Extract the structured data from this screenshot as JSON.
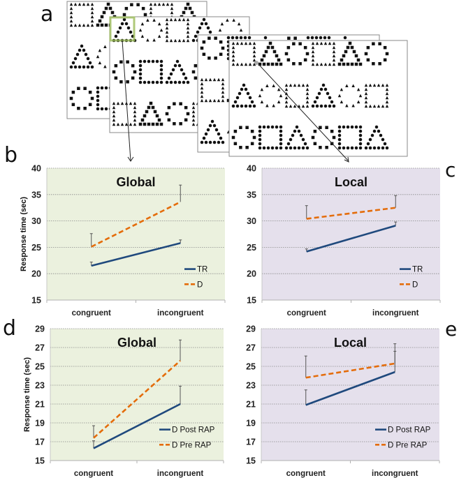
{
  "panel_labels": {
    "a": "a",
    "b": "b",
    "c": "c",
    "d": "d",
    "e": "e"
  },
  "stimuli": {
    "description": "Navon hierarchical figures: large shapes (square, triangle, circle) composed of small shapes; four overlapping stimulus frames",
    "shapes": [
      "square",
      "triangle",
      "circle"
    ],
    "highlight_color": "#9bbb59"
  },
  "colors": {
    "global_bg": "#ebf1de",
    "local_bg": "#e5e0ec",
    "solid_series": "#1f497d",
    "dashed_series": "#e46c0a",
    "error_bar": "#555555"
  },
  "chart_data": [
    {
      "id": "b",
      "type": "line",
      "title": "Global",
      "xlabel": "",
      "ylabel": "Response time (sec)",
      "categories": [
        "congruent",
        "incongruent"
      ],
      "ylim": [
        15,
        40
      ],
      "yticks": [
        15,
        20,
        25,
        30,
        35,
        40
      ],
      "grid": true,
      "legend": "bottom-right",
      "background": "global",
      "series": [
        {
          "name": "TR",
          "style": "solid",
          "values": [
            21.5,
            25.8
          ],
          "error_upper": [
            22.2,
            26.4
          ]
        },
        {
          "name": "D",
          "style": "dashed",
          "values": [
            25.1,
            33.6
          ],
          "error_upper": [
            27.6,
            36.8
          ]
        }
      ]
    },
    {
      "id": "c",
      "type": "line",
      "title": "Local",
      "xlabel": "",
      "ylabel": "",
      "categories": [
        "congruent",
        "incongruent"
      ],
      "ylim": [
        15,
        40
      ],
      "yticks": [
        15,
        20,
        25,
        30,
        35,
        40
      ],
      "grid": true,
      "legend": "bottom-right",
      "background": "local",
      "series": [
        {
          "name": "TR",
          "style": "solid",
          "values": [
            24.2,
            29.1
          ],
          "error_upper": [
            24.7,
            29.8
          ]
        },
        {
          "name": "D",
          "style": "dashed",
          "values": [
            30.4,
            32.5
          ],
          "error_upper": [
            32.9,
            34.8
          ]
        }
      ]
    },
    {
      "id": "d",
      "type": "line",
      "title": "Global",
      "xlabel": "",
      "ylabel": "Response time (sec)",
      "categories": [
        "congruent",
        "incongruent"
      ],
      "ylim": [
        15,
        29
      ],
      "yticks": [
        15,
        17,
        19,
        21,
        23,
        25,
        27,
        29
      ],
      "grid": true,
      "legend": "bottom-right",
      "background": "global",
      "series": [
        {
          "name": "D Post RAP",
          "style": "solid",
          "values": [
            16.3,
            21.0
          ],
          "error_upper": [
            17.1,
            22.9
          ]
        },
        {
          "name": "D Pre RAP",
          "style": "dashed",
          "values": [
            17.4,
            25.6
          ],
          "error_upper": [
            18.7,
            27.8
          ]
        }
      ]
    },
    {
      "id": "e",
      "type": "line",
      "title": "Local",
      "xlabel": "",
      "ylabel": "",
      "categories": [
        "congruent",
        "incongruent"
      ],
      "ylim": [
        15,
        29
      ],
      "yticks": [
        15,
        17,
        19,
        21,
        23,
        25,
        27,
        29
      ],
      "grid": true,
      "legend": "bottom-right",
      "background": "local",
      "series": [
        {
          "name": "D Post RAP",
          "style": "solid",
          "values": [
            20.9,
            24.4
          ],
          "error_upper": [
            22.5,
            26.6
          ]
        },
        {
          "name": "D Pre RAP",
          "style": "dashed",
          "values": [
            23.8,
            25.3
          ],
          "error_upper": [
            26.1,
            27.4
          ]
        }
      ]
    }
  ]
}
